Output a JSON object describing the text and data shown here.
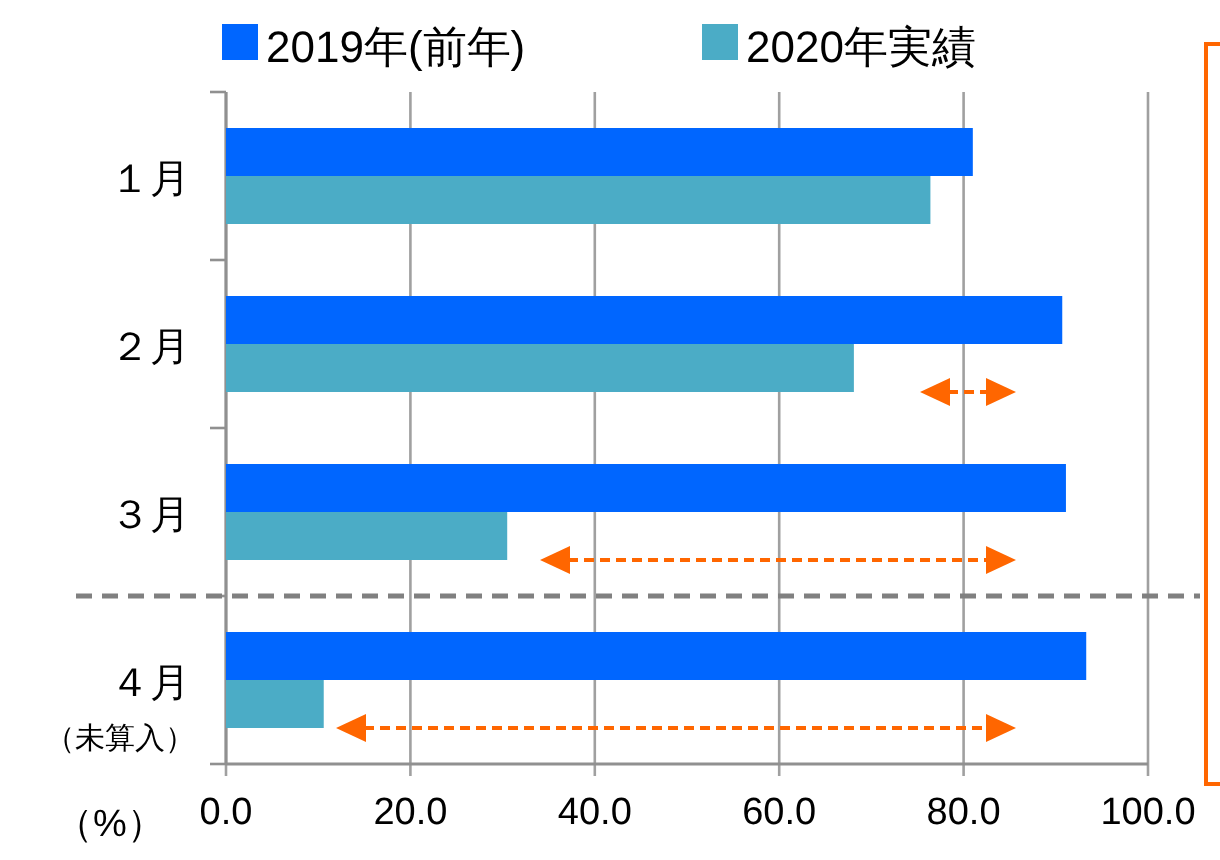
{
  "chart_data": {
    "type": "bar",
    "orientation": "horizontal",
    "categories": [
      "１月",
      "２月",
      "３月",
      "４月（未算入）"
    ],
    "series": [
      {
        "name": "2019年(前年)",
        "color": "#0066ff",
        "values": [
          81.0,
          90.7,
          91.1,
          93.3
        ]
      },
      {
        "name": "2020年実績",
        "color": "#4bacc6",
        "values": [
          76.4,
          68.1,
          30.5,
          10.6
        ]
      }
    ],
    "xlabel": "（%）",
    "xlim": [
      0,
      100
    ],
    "xticks": [
      {
        "value": 0,
        "label": "0.0"
      },
      {
        "value": 20,
        "label": "20.0"
      },
      {
        "value": 40,
        "label": "40.0"
      },
      {
        "value": 60,
        "label": "60.0"
      },
      {
        "value": 80,
        "label": "80.0"
      },
      {
        "value": 100,
        "label": "100.0"
      }
    ],
    "grid": "x",
    "legend": "top"
  }
}
